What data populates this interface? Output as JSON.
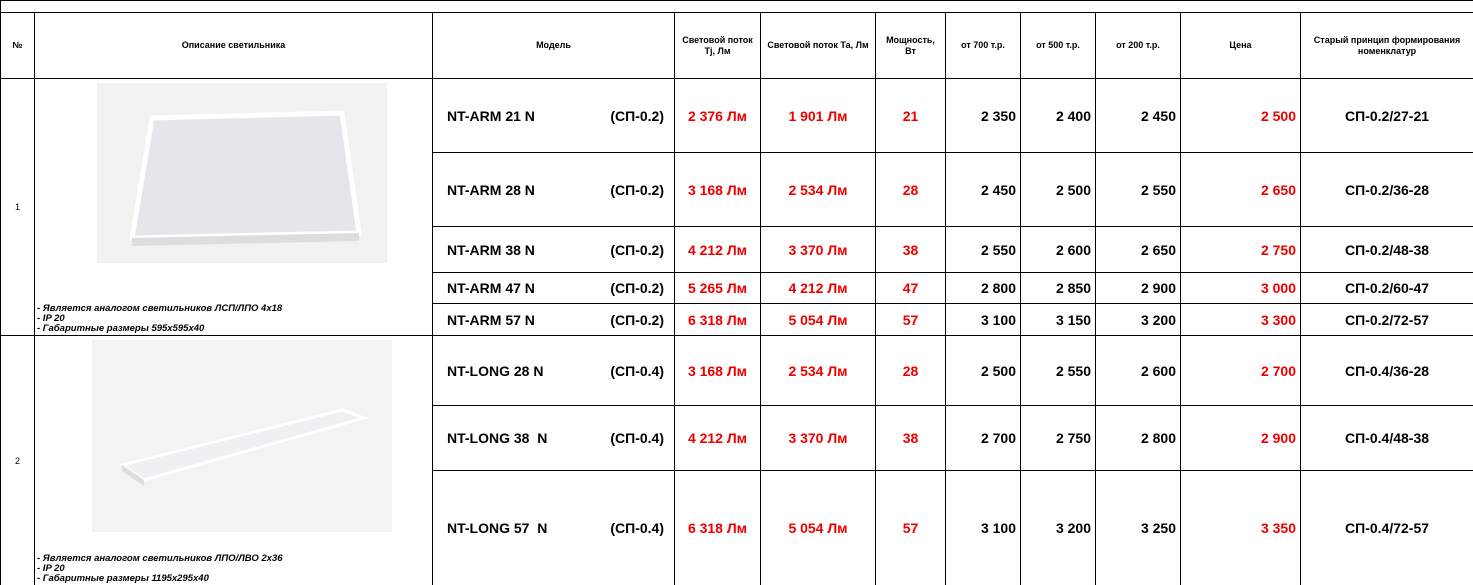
{
  "header": {
    "cells": [
      "№",
      "Описание светильника",
      "Модель",
      "Световой поток Tj, Лм",
      "Световой поток Та, Лм",
      "Мощность, Вт",
      "от 700 т.р.",
      "от 500 т.р.",
      "от 200 т.р.",
      "Цена",
      "Старый принцип формирования номенклатур"
    ]
  },
  "groups": [
    {
      "number": "1",
      "description": [
        "- Является аналогом светильников ЛСП/ЛПО 4x18",
        "- IP 20",
        "- Габаритные размеры 595x595x40"
      ],
      "rows": [
        {
          "model": "NT-ARM 21 N",
          "code": "(СП-0.2)",
          "flux_tj": "2 376 Лм",
          "flux_ta": "1 901 Лм",
          "power": "21",
          "p700": "2 350",
          "p500": "2 400",
          "p200": "2 450",
          "price": "2 500",
          "old": "СП-0.2/27-21"
        },
        {
          "model": "NT-ARM 28 N",
          "code": "(СП-0.2)",
          "flux_tj": "3 168 Лм",
          "flux_ta": "2 534 Лм",
          "power": "28",
          "p700": "2 450",
          "p500": "2 500",
          "p200": "2 550",
          "price": "2 650",
          "old": "СП-0.2/36-28"
        },
        {
          "model": "NT-ARM 38 N",
          "code": "(СП-0.2)",
          "flux_tj": "4 212 Лм",
          "flux_ta": "3 370 Лм",
          "power": "38",
          "p700": "2 550",
          "p500": "2 600",
          "p200": "2 650",
          "price": "2 750",
          "old": "СП-0.2/48-38"
        },
        {
          "model": "NT-ARM 47 N",
          "code": "(СП-0.2)",
          "flux_tj": "5 265 Лм",
          "flux_ta": "4 212 Лм",
          "power": "47",
          "p700": "2 800",
          "p500": "2 850",
          "p200": "2 900",
          "price": "3 000",
          "old": "СП-0.2/60-47"
        },
        {
          "model": "NT-ARM 57 N",
          "code": "(СП-0.2)",
          "flux_tj": "6 318 Лм",
          "flux_ta": "5 054 Лм",
          "power": "57",
          "p700": "3 100",
          "p500": "3 150",
          "p200": "3 200",
          "price": "3 300",
          "old": "СП-0.2/72-57"
        }
      ]
    },
    {
      "number": "2",
      "description": [
        "- Является аналогом светильников ЛПО/ЛВО 2x36",
        "- IP 20",
        "- Габаритные размеры 1195x295x40"
      ],
      "rows": [
        {
          "model": "NT-LONG 28 N",
          "code": "(СП-0.4)",
          "flux_tj": "3 168 Лм",
          "flux_ta": "2 534 Лм",
          "power": "28",
          "p700": "2 500",
          "p500": "2 550",
          "p200": "2 600",
          "price": "2 700",
          "old": "СП-0.4/36-28"
        },
        {
          "model": "NT-LONG 38  N",
          "code": "(СП-0.4)",
          "flux_tj": "4 212 Лм",
          "flux_ta": "3 370 Лм",
          "power": "38",
          "p700": "2 700",
          "p500": "2 750",
          "p200": "2 800",
          "price": "2 900",
          "old": "СП-0.4/48-38"
        },
        {
          "model": "NT-LONG 57  N",
          "code": "(СП-0.4)",
          "flux_tj": "6 318 Лм",
          "flux_ta": "5 054 Лм",
          "power": "57",
          "p700": "3 100",
          "p500": "3 200",
          "p200": "3 250",
          "price": "3 350",
          "old": "СП-0.4/72-57"
        }
      ]
    }
  ]
}
